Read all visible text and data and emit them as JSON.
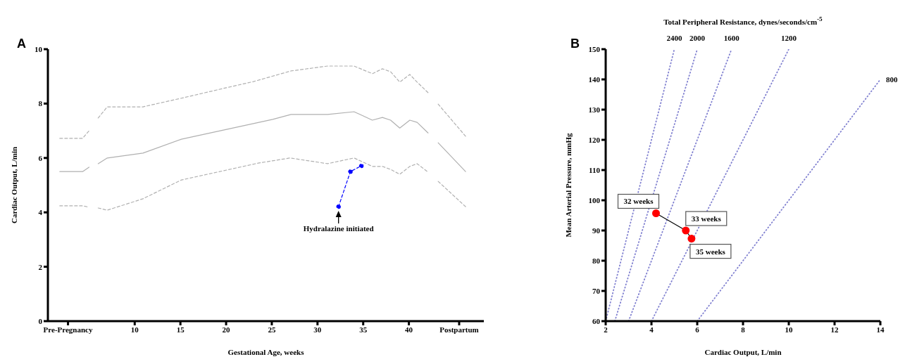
{
  "chart_data": [
    {
      "type": "line",
      "xlabel": "Gestational Age, weeks",
      "ylabel": "Cardiac Output, L/min",
      "xlim": [
        0.5,
        48.2
      ],
      "xticks": [
        {
          "value": 2.7,
          "label": "Pre-Pregnancy"
        },
        10,
        15,
        20,
        25,
        30,
        35,
        40,
        {
          "value": 45.5,
          "label": "Postpartum"
        }
      ],
      "ylim": [
        0,
        10
      ],
      "yticks": [
        0,
        2,
        4,
        6,
        8,
        10
      ],
      "grid": false,
      "legend": false,
      "series": [
        {
          "color": "#b0b0b0",
          "line_style": "dashed",
          "marker": "none",
          "x": [
            1.8,
            4.3,
            5.0,
            5.5,
            6.0,
            7.0,
            10.9,
            15,
            20,
            23,
            27.1,
            31.1,
            34,
            36,
            37.1,
            38,
            39,
            40.1,
            40.9,
            42.1,
            42.6,
            43.2,
            46.2
          ],
          "values": [
            6.72,
            6.72,
            7.0,
            null,
            7.47,
            7.88,
            7.88,
            8.19,
            8.58,
            8.81,
            9.2,
            9.38,
            9.38,
            9.1,
            9.28,
            9.17,
            8.79,
            9.07,
            8.79,
            8.4,
            null,
            7.98,
            6.8
          ]
        },
        {
          "color": "#b0b0b0",
          "line_style": "solid",
          "marker": "none",
          "x": [
            1.8,
            4.3,
            5.0,
            5.5,
            6.0,
            7.0,
            10.9,
            15.1,
            25.1,
            27.1,
            31.1,
            34,
            36,
            37.1,
            38,
            39,
            40.1,
            40.9,
            42.1,
            42.6,
            43.2,
            46.2
          ],
          "values": [
            5.5,
            5.5,
            5.66,
            null,
            5.79,
            6.0,
            6.18,
            6.69,
            7.42,
            7.6,
            7.6,
            7.7,
            7.39,
            7.49,
            7.39,
            7.1,
            7.39,
            7.31,
            6.92,
            null,
            6.56,
            5.5
          ]
        },
        {
          "color": "#b0b0b0",
          "line_style": "dashed",
          "marker": "none",
          "x": [
            1.8,
            4.3,
            5.0,
            5.5,
            6.0,
            7.0,
            10.9,
            15.1,
            23.5,
            27,
            31.1,
            34,
            36,
            37.1,
            38,
            39,
            40.1,
            40.9,
            42.1,
            42.6,
            43.2,
            46.2
          ],
          "values": [
            4.24,
            4.24,
            4.19,
            null,
            4.16,
            4.08,
            4.5,
            5.19,
            5.81,
            6.0,
            5.79,
            6.0,
            5.69,
            5.69,
            5.58,
            5.4,
            5.69,
            5.79,
            5.48,
            null,
            5.14,
            4.21
          ]
        },
        {
          "color": "#0000ff",
          "line_style": "dashed",
          "marker": "circle",
          "x": [
            32.3,
            33.6,
            34.8
          ],
          "values": [
            4.21,
            5.5,
            5.71
          ]
        }
      ],
      "annotations": [
        "A",
        {
          "text": "Hydralazine initiated",
          "x": 32.3,
          "y": 4.21
        }
      ]
    },
    {
      "type": "scatter",
      "title": "Total Peripheral Resistance, dynes/seconds/cm$^{-5}$",
      "xlabel": "Cardiac Output, L/min",
      "ylabel": "Mean Arterial Pressure, mmHg",
      "xlim": [
        2,
        14
      ],
      "xticks": [
        2,
        4,
        6,
        8,
        10,
        12,
        14
      ],
      "ylim": [
        60,
        150
      ],
      "yticks": [
        60,
        70,
        80,
        90,
        100,
        110,
        120,
        130,
        140,
        150
      ],
      "grid": false,
      "legend": false,
      "series": [
        {
          "type": "line",
          "name": "2400",
          "color": "#8080d0",
          "line_style": "dotted",
          "marker": "none",
          "x": [
            2,
            5
          ],
          "values": [
            60,
            150
          ]
        },
        {
          "type": "line",
          "name": "2000",
          "color": "#8080d0",
          "line_style": "dotted",
          "marker": "none",
          "x": [
            2.4,
            6
          ],
          "values": [
            60,
            150
          ]
        },
        {
          "type": "line",
          "name": "1600",
          "color": "#8080d0",
          "line_style": "dotted",
          "marker": "none",
          "x": [
            3,
            7.5
          ],
          "values": [
            60,
            150
          ]
        },
        {
          "type": "line",
          "name": "1200",
          "color": "#8080d0",
          "line_style": "dotted",
          "marker": "none",
          "x": [
            4,
            10
          ],
          "values": [
            60,
            150
          ]
        },
        {
          "type": "line",
          "name": "800",
          "color": "#8080d0",
          "line_style": "dotted",
          "marker": "none",
          "x": [
            6,
            14
          ],
          "values": [
            60,
            140
          ]
        },
        {
          "type": "line",
          "color": "#000000",
          "line_style": "solid",
          "marker": "none",
          "x": [
            4.2,
            5.5,
            5.75
          ],
          "values": [
            95.7,
            90,
            87.3
          ]
        },
        {
          "type": "scatter",
          "color": "#ff0000",
          "marker": "circle",
          "x": [
            4.2,
            5.5,
            5.75
          ],
          "values": [
            95.7,
            90,
            87.3
          ]
        }
      ],
      "annotations": [
        "B",
        {
          "text": "32 weeks",
          "x": 4.2,
          "y": 95.7
        },
        {
          "text": "33 weeks",
          "x": 5.5,
          "y": 90
        },
        {
          "text": "35 weeks",
          "x": 5.75,
          "y": 87.3
        }
      ]
    }
  ]
}
